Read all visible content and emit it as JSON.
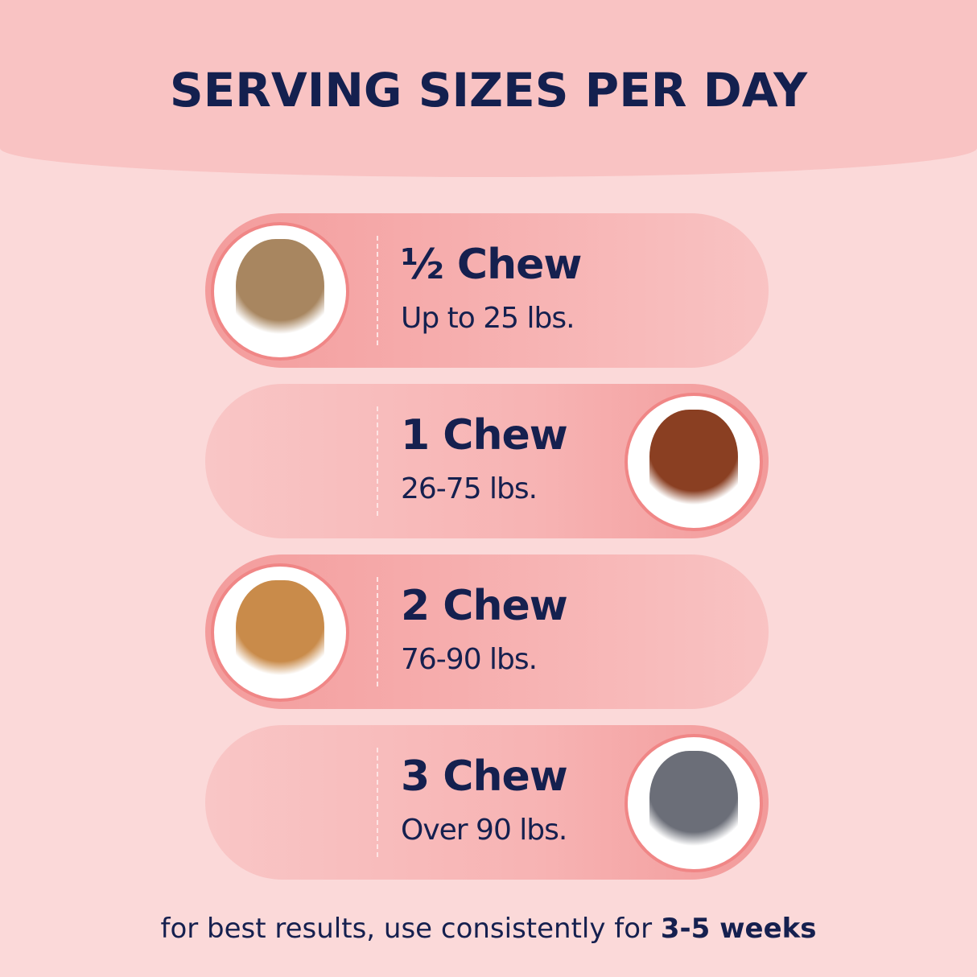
{
  "title": "SERVING SIZES PER DAY",
  "rows": [
    {
      "amount": "½ Chew",
      "weight": "Up to 25 lbs.",
      "image_side": "left",
      "icon": "yorkshire-terrier-photo",
      "dog_color": "#a88660"
    },
    {
      "amount": "1 Chew",
      "weight": "26-75 lbs.",
      "image_side": "right",
      "icon": "goldendoodle-photo",
      "dog_color": "#8a3f22"
    },
    {
      "amount": "2 Chew",
      "weight": "76-90 lbs.",
      "image_side": "left",
      "icon": "golden-retriever-photo",
      "dog_color": "#c98b4a"
    },
    {
      "amount": "3 Chew",
      "weight": "Over 90 lbs.",
      "image_side": "right",
      "icon": "pitbull-photo",
      "dog_color": "#6b6e78"
    }
  ],
  "footer": {
    "text": "for best results, use consistently for ",
    "emphasis": "3-5 weeks"
  },
  "colors": {
    "navy": "#15204f",
    "accent_pink": "#f08686",
    "background": "#fbd9d9"
  }
}
